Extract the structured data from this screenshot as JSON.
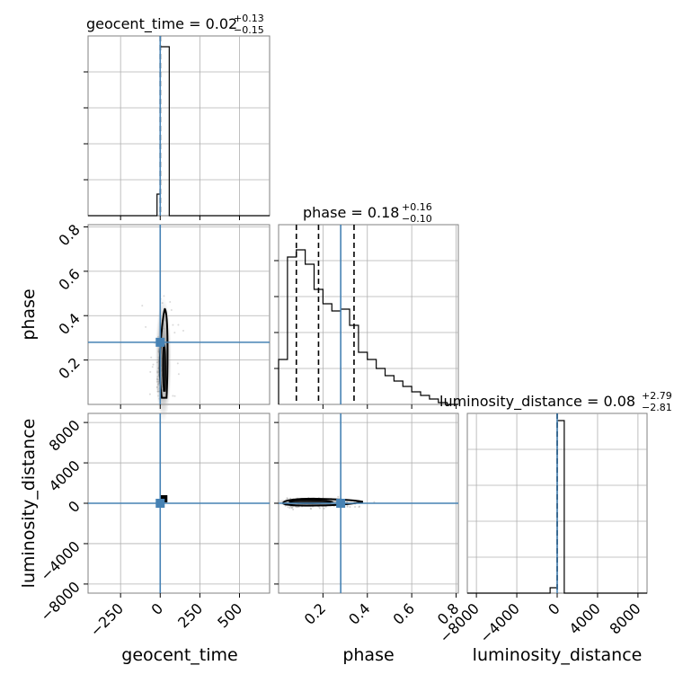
{
  "colors": {
    "truth": "#4682b4",
    "hist": "#000000",
    "grid": "#b0b0b0",
    "scatter": "#888888",
    "density": "#9a9a9a"
  },
  "chart_data": {
    "type": "corner",
    "parameters": [
      "geocent_time",
      "phase",
      "luminosity_distance"
    ],
    "truths": {
      "geocent_time": 0,
      "phase": 0.28,
      "luminosity_distance": 0
    },
    "titles": [
      {
        "param": "geocent_time",
        "text": "geocent_time = 0.02",
        "sup": "+0.13",
        "sub": "−0.15"
      },
      {
        "param": "phase",
        "text": "phase = 0.18",
        "sup": "+0.16",
        "sub": "−0.10"
      },
      {
        "param": "luminosity_distance",
        "text": "luminosity_distance = 0.08",
        "sup": "+2.79",
        "sub": "−2.81"
      }
    ],
    "axis_labels": {
      "x": [
        "geocent_time",
        "phase",
        "luminosity_distance"
      ],
      "y": [
        "phase",
        "luminosity_distance"
      ]
    },
    "ranges": {
      "geocent_time": [
        -455,
        690
      ],
      "phase": [
        0.0,
        0.81
      ],
      "luminosity_distance": [
        -8900,
        8900
      ]
    },
    "ticks": {
      "geocent_time": [
        {
          "v": -250,
          "t": "−250"
        },
        {
          "v": 0,
          "t": "0"
        },
        {
          "v": 250,
          "t": "250"
        },
        {
          "v": 500,
          "t": "500"
        }
      ],
      "phase": [
        {
          "v": 0.2,
          "t": "0.2"
        },
        {
          "v": 0.4,
          "t": "0.4"
        },
        {
          "v": 0.6,
          "t": "0.6"
        },
        {
          "v": 0.8,
          "t": "0.8"
        }
      ],
      "luminosity_distance_x": [
        {
          "v": -8000,
          "t": "−8000"
        },
        {
          "v": -4000,
          "t": "−4000"
        },
        {
          "v": 0,
          "t": "0"
        },
        {
          "v": 4000,
          "t": "4000"
        },
        {
          "v": 8000,
          "t": "8000"
        }
      ],
      "luminosity_distance_y": [
        {
          "v": -8000,
          "t": "−8000"
        },
        {
          "v": -4000,
          "t": "−4000"
        },
        {
          "v": 0,
          "t": "0"
        },
        {
          "v": 4000,
          "t": "4000"
        },
        {
          "v": 8000,
          "t": "8000"
        }
      ]
    },
    "grid": true,
    "histograms": {
      "geocent_time": {
        "edges": [
          -455,
          -57,
          -20,
          0,
          20,
          57,
          690
        ],
        "counts": [
          0,
          0,
          0.12,
          0.94,
          0.94,
          0
        ],
        "quantiles": [
          -0.13,
          0.02,
          0.15
        ]
      },
      "phase": {
        "edges": [
          0.0,
          0.04,
          0.08,
          0.12,
          0.16,
          0.2,
          0.24,
          0.28,
          0.32,
          0.36,
          0.4,
          0.44,
          0.48,
          0.52,
          0.56,
          0.6,
          0.64,
          0.68,
          0.72,
          0.76,
          0.81
        ],
        "counts": [
          0.25,
          0.82,
          0.86,
          0.78,
          0.64,
          0.56,
          0.52,
          0.53,
          0.44,
          0.29,
          0.25,
          0.2,
          0.16,
          0.13,
          0.1,
          0.07,
          0.05,
          0.03,
          0.01,
          0.0
        ],
        "quantiles": [
          0.08,
          0.18,
          0.34
        ]
      },
      "luminosity_distance": {
        "edges": [
          -8900,
          -700,
          0,
          700,
          8900
        ],
        "counts": [
          0,
          0.03,
          0.96,
          0
        ],
        "quantiles": [
          -2.73,
          0.08,
          2.87
        ]
      }
    }
  }
}
